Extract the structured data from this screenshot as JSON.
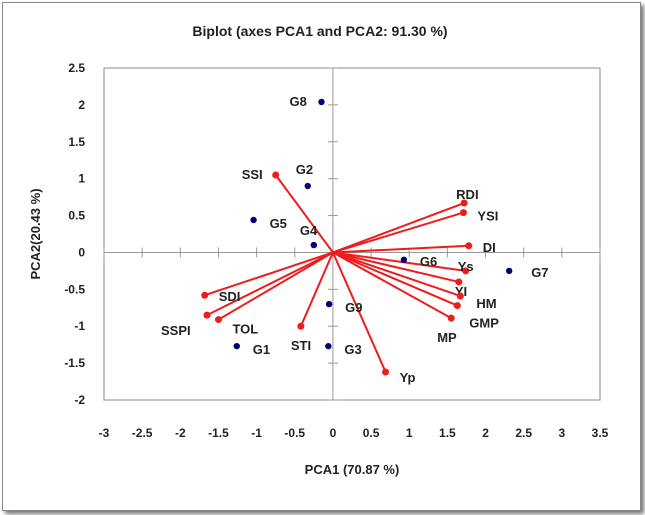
{
  "chart_data": {
    "type": "scatter",
    "title": "Biplot (axes PCA1 and PCA2: 91.30 %)",
    "xlabel": "PCA1 (70.87 %)",
    "ylabel": "PCA2(20.43 %)",
    "xlim": [
      -3,
      3.5
    ],
    "ylim": [
      -2,
      2.5
    ],
    "xticks": [
      "-3",
      "-2.5",
      "-2",
      "-1.5",
      "-1",
      "-0.5",
      "0",
      "0.5",
      "1",
      "1.5",
      "2",
      "2.5",
      "3",
      "3.5"
    ],
    "yticks": [
      "-2",
      "-1.5",
      "-1",
      "-0.5",
      "0",
      "0.5",
      "1",
      "1.5",
      "2",
      "2.5"
    ],
    "grid": false,
    "colors": {
      "observations": "#00007f",
      "variables": "#ee1c1c"
    },
    "observations": [
      {
        "label": "G1",
        "x": -1.26,
        "y": -1.27
      },
      {
        "label": "G2",
        "x": -0.33,
        "y": 0.9
      },
      {
        "label": "G3",
        "x": -0.06,
        "y": -1.27
      },
      {
        "label": "G4",
        "x": -0.25,
        "y": 0.1
      },
      {
        "label": "G5",
        "x": -1.04,
        "y": 0.44
      },
      {
        "label": "G6",
        "x": 0.93,
        "y": -0.1
      },
      {
        "label": "G7",
        "x": 2.31,
        "y": -0.25
      },
      {
        "label": "G8",
        "x": -0.15,
        "y": 2.04
      },
      {
        "label": "G9",
        "x": -0.05,
        "y": -0.7
      }
    ],
    "variables": [
      {
        "label": "SSI",
        "x": -0.75,
        "y": 1.05
      },
      {
        "label": "RDI",
        "x": 1.72,
        "y": 0.67
      },
      {
        "label": "YSI",
        "x": 1.71,
        "y": 0.54
      },
      {
        "label": "DI",
        "x": 1.78,
        "y": 0.09
      },
      {
        "label": "Ys",
        "x": 1.74,
        "y": -0.25
      },
      {
        "label": "YI",
        "x": 1.65,
        "y": -0.4
      },
      {
        "label": "HM",
        "x": 1.67,
        "y": -0.59
      },
      {
        "label": "GMP",
        "x": 1.63,
        "y": -0.72
      },
      {
        "label": "MP",
        "x": 1.55,
        "y": -0.89
      },
      {
        "label": "Yp",
        "x": 0.69,
        "y": -1.62
      },
      {
        "label": "STI",
        "x": -0.42,
        "y": -1.0
      },
      {
        "label": "TOL",
        "x": -1.5,
        "y": -0.91
      },
      {
        "label": "SSPI",
        "x": -1.65,
        "y": -0.85
      },
      {
        "label": "SDI",
        "x": -1.68,
        "y": -0.58
      }
    ]
  }
}
